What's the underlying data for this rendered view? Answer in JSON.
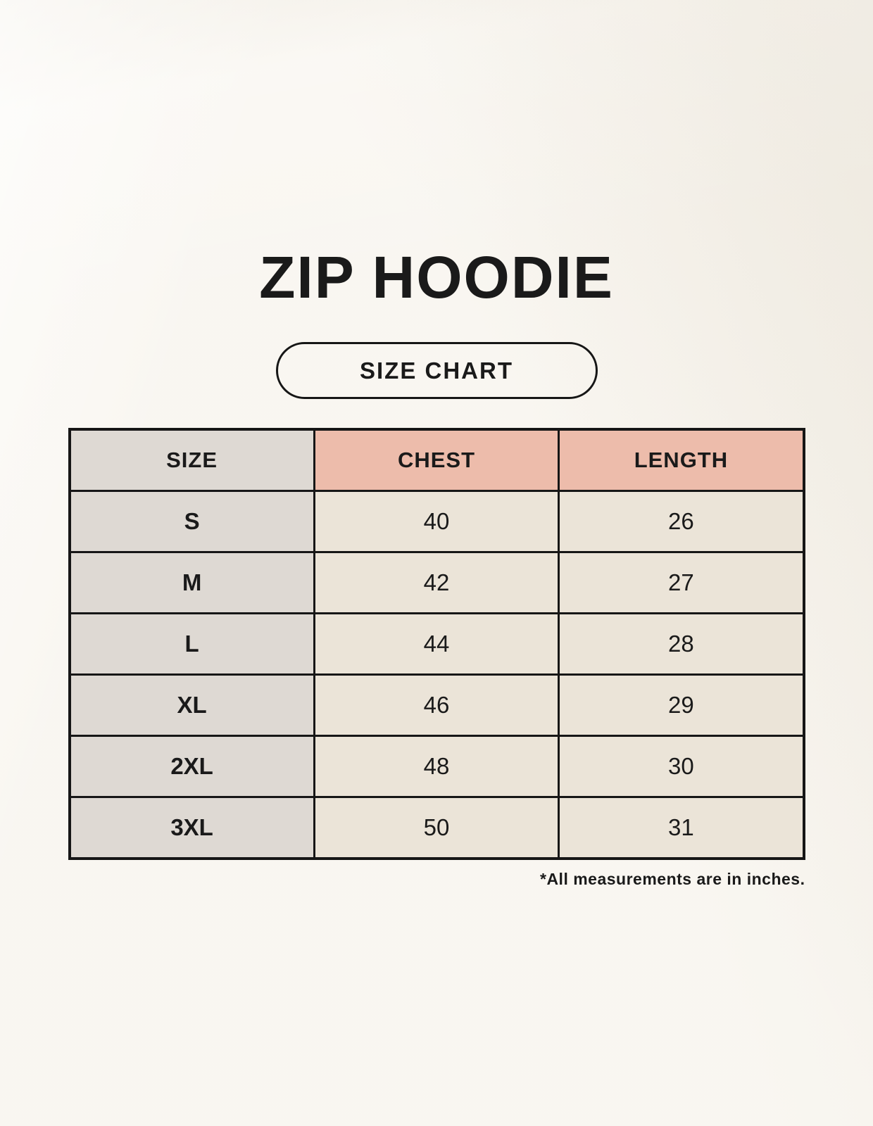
{
  "page": {
    "title": "ZIP HOODIE",
    "badge_label": "SIZE CHART",
    "footnote": "*All measurements are in inches."
  },
  "chart_data": {
    "type": "table",
    "title": "ZIP HOODIE",
    "subtitle": "SIZE CHART",
    "columns": [
      "SIZE",
      "CHEST",
      "LENGTH"
    ],
    "rows": [
      [
        "S",
        "40",
        "26"
      ],
      [
        "M",
        "42",
        "27"
      ],
      [
        "L",
        "44",
        "28"
      ],
      [
        "XL",
        "46",
        "29"
      ],
      [
        "2XL",
        "48",
        "30"
      ],
      [
        "3XL",
        "50",
        "31"
      ]
    ],
    "note": "*All measurements are in inches.",
    "units": "inches"
  },
  "colors": {
    "background": "#f6f2ea",
    "header-pink": "#edbcab",
    "label-gray": "#ded9d3",
    "cell-cream": "#ebe4d8",
    "border": "#161616",
    "text": "#1a1a1a"
  }
}
